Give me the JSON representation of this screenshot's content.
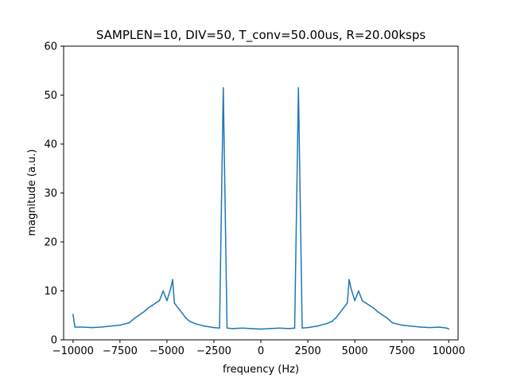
{
  "chart_data": {
    "type": "line",
    "title": "SAMPLEN=10, DIV=50, T_conv=50.00us, R=20.00ksps",
    "xlabel": "frequency (Hz)",
    "ylabel": "magnitude (a.u.)",
    "xlim": [
      -10500,
      10500
    ],
    "ylim": [
      0,
      60
    ],
    "xticks": [
      -10000,
      -7500,
      -5000,
      -2500,
      0,
      2500,
      5000,
      7500,
      10000
    ],
    "xtick_labels": [
      "−10000",
      "−7500",
      "−5000",
      "−2500",
      "0",
      "2500",
      "5000",
      "7500",
      "10000"
    ],
    "yticks": [
      0,
      10,
      20,
      30,
      40,
      50,
      60
    ],
    "ytick_labels": [
      "0",
      "10",
      "20",
      "30",
      "40",
      "50",
      "60"
    ],
    "grid": false,
    "line_color": "#1f77b4",
    "series": [
      {
        "x": [
          -10000,
          -9900,
          -9500,
          -9000,
          -8500,
          -8000,
          -7500,
          -7000,
          -6700,
          -6500,
          -6200,
          -6000,
          -5800,
          -5600,
          -5400,
          -5200,
          -5000,
          -4800,
          -4700,
          -4600,
          -4400,
          -4200,
          -4000,
          -3800,
          -3500,
          -3000,
          -2500,
          -2200,
          -2000,
          -1800,
          -1500,
          -1000,
          -500,
          0,
          500,
          1000,
          1500,
          1800,
          2000,
          2200,
          2500,
          3000,
          3500,
          3800,
          4000,
          4200,
          4400,
          4600,
          4700,
          4800,
          5000,
          5200,
          5400,
          5600,
          5800,
          6000,
          6200,
          6500,
          6700,
          7000,
          7500,
          8000,
          8500,
          9000,
          9500,
          9900,
          10000
        ],
        "y": [
          5.2,
          2.6,
          2.6,
          2.5,
          2.6,
          2.8,
          3.0,
          3.5,
          4.5,
          5.0,
          5.8,
          6.5,
          7.0,
          7.5,
          8.0,
          10.0,
          8.0,
          10.5,
          12.3,
          7.5,
          6.5,
          5.5,
          4.5,
          3.8,
          3.3,
          2.8,
          2.5,
          2.4,
          51.5,
          2.4,
          2.3,
          2.4,
          2.3,
          2.2,
          2.3,
          2.4,
          2.3,
          2.4,
          51.5,
          2.4,
          2.5,
          2.8,
          3.3,
          3.8,
          4.5,
          5.5,
          6.5,
          7.5,
          12.3,
          10.5,
          8.0,
          10.0,
          8.0,
          7.5,
          7.0,
          6.5,
          5.8,
          5.0,
          4.5,
          3.5,
          3.0,
          2.8,
          2.6,
          2.5,
          2.6,
          2.4,
          2.2
        ]
      }
    ]
  }
}
